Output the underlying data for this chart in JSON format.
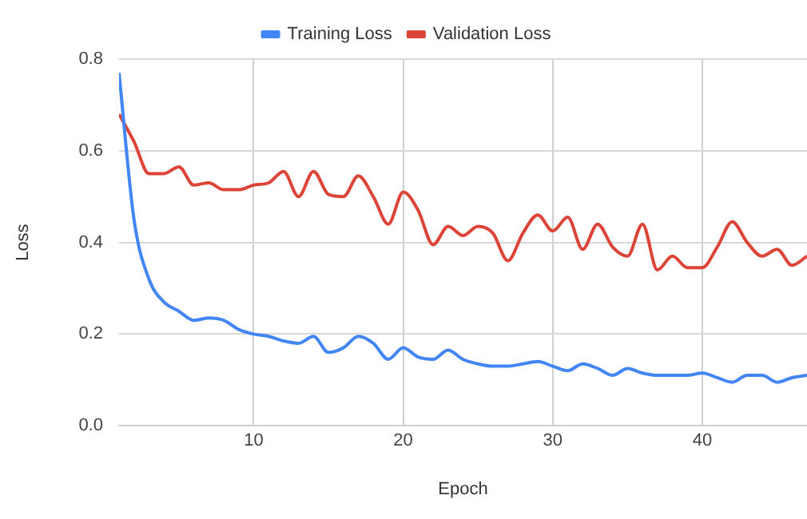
{
  "chart_data": {
    "type": "line",
    "xlabel": "Epoch",
    "ylabel": "Loss",
    "x": [
      1,
      2,
      3,
      4,
      5,
      6,
      7,
      8,
      9,
      10,
      11,
      12,
      13,
      14,
      15,
      16,
      17,
      18,
      19,
      20,
      21,
      22,
      23,
      24,
      25,
      26,
      27,
      28,
      29,
      30,
      31,
      32,
      33,
      34,
      35,
      36,
      37,
      38,
      39,
      40,
      41,
      42,
      43,
      44,
      45,
      46,
      47
    ],
    "series": [
      {
        "name": "Training Loss",
        "color": "#4285f4",
        "values": [
          0.77,
          0.45,
          0.32,
          0.27,
          0.25,
          0.23,
          0.235,
          0.23,
          0.21,
          0.2,
          0.195,
          0.185,
          0.18,
          0.195,
          0.16,
          0.17,
          0.195,
          0.18,
          0.145,
          0.17,
          0.15,
          0.145,
          0.165,
          0.145,
          0.135,
          0.13,
          0.13,
          0.135,
          0.14,
          0.13,
          0.12,
          0.135,
          0.125,
          0.11,
          0.125,
          0.115,
          0.11,
          0.11,
          0.11,
          0.115,
          0.105,
          0.095,
          0.11,
          0.11,
          0.095,
          0.105,
          0.11
        ]
      },
      {
        "name": "Validation Loss",
        "color": "#db4437",
        "values": [
          0.68,
          0.62,
          0.55,
          0.55,
          0.565,
          0.525,
          0.53,
          0.515,
          0.515,
          0.525,
          0.53,
          0.555,
          0.5,
          0.555,
          0.505,
          0.5,
          0.545,
          0.5,
          0.44,
          0.51,
          0.47,
          0.395,
          0.435,
          0.415,
          0.435,
          0.42,
          0.36,
          0.42,
          0.46,
          0.425,
          0.455,
          0.385,
          0.44,
          0.39,
          0.37,
          0.44,
          0.34,
          0.37,
          0.345,
          0.345,
          0.39,
          0.445,
          0.4,
          0.37,
          0.385,
          0.35,
          0.37
        ]
      }
    ],
    "xlim": [
      1,
      47
    ],
    "xticks": [
      10,
      20,
      30,
      40
    ],
    "ylim": [
      0,
      0.8
    ],
    "yticks": [
      {
        "value": 0,
        "label": "0.0"
      },
      {
        "value": 0.2,
        "label": "0.2"
      },
      {
        "value": 0.4,
        "label": "0.4"
      },
      {
        "value": 0.6,
        "label": "0.6"
      },
      {
        "value": 0.8,
        "label": "0.8"
      }
    ],
    "grid": true,
    "legend": "top",
    "marker": "none",
    "line_style": "solid"
  }
}
